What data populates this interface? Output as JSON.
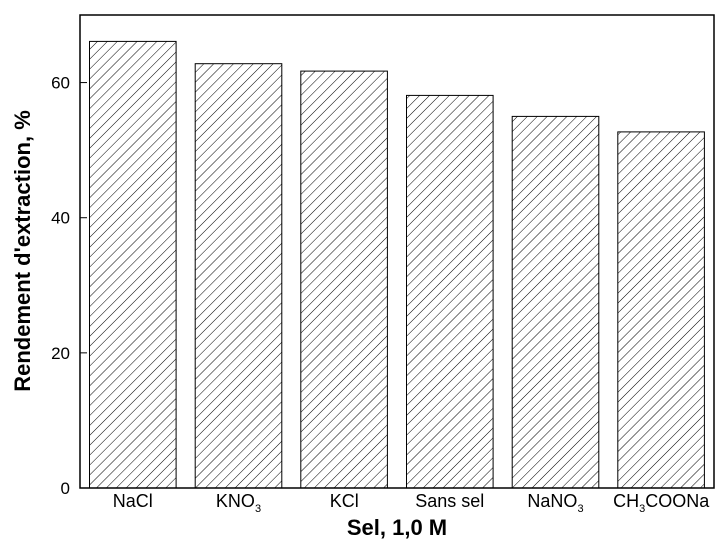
{
  "chart_data": {
    "type": "bar",
    "title": "",
    "xlabel": "Sel, 1,0 M",
    "ylabel": "Rendement d'extraction, %",
    "ylim": [
      0,
      70
    ],
    "yticks": [
      0,
      20,
      40,
      60
    ],
    "grid": false,
    "bar_fill": "diagonal-hatch",
    "bar_color": "#000000",
    "categories": [
      {
        "text": "NaCl",
        "sub": "",
        "tail": ""
      },
      {
        "text": "KNO",
        "sub": "3",
        "tail": ""
      },
      {
        "text": "KCl",
        "sub": "",
        "tail": ""
      },
      {
        "text": "Sans sel",
        "sub": "",
        "tail": ""
      },
      {
        "text": "NaNO",
        "sub": "3",
        "tail": ""
      },
      {
        "text": "CH",
        "sub": "3",
        "tail": "COONa"
      }
    ],
    "values": [
      66.1,
      62.8,
      61.7,
      58.1,
      55.0,
      52.7
    ]
  }
}
